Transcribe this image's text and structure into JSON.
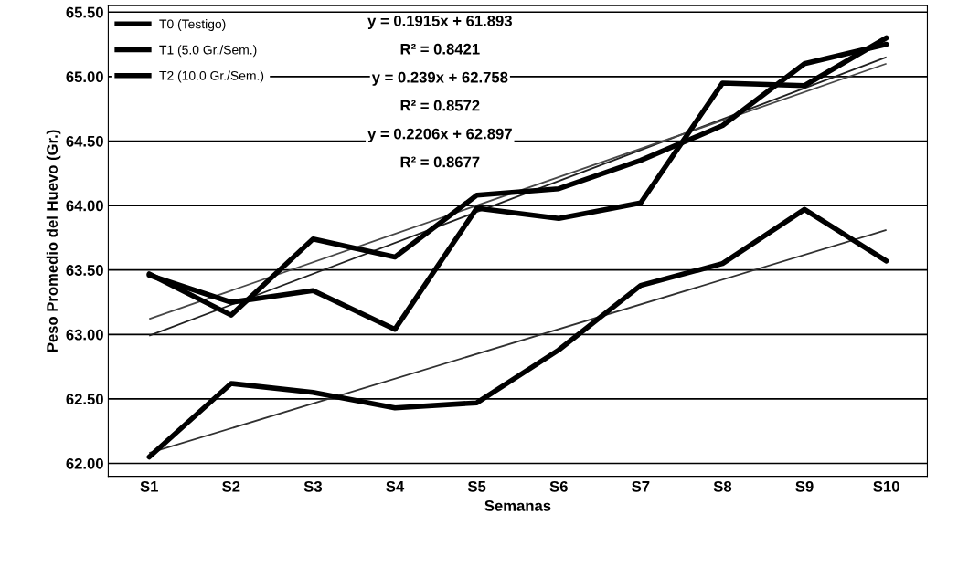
{
  "chart_data": {
    "type": "line",
    "xlabel": "Semanas",
    "ylabel": "Peso Promedio del Huevo (Gr.)",
    "categories": [
      "S1",
      "S2",
      "S3",
      "S4",
      "S5",
      "S6",
      "S7",
      "S8",
      "S9",
      "S10"
    ],
    "series": [
      {
        "name": "T0 (Testigo)",
        "color": "#000000",
        "values": [
          62.05,
          62.62,
          62.55,
          62.43,
          62.47,
          62.88,
          63.38,
          63.55,
          63.97,
          63.57
        ]
      },
      {
        "name": "T1 (5.0 Gr./Sem.)",
        "color": "#000000",
        "values": [
          63.46,
          63.25,
          63.34,
          63.04,
          63.98,
          63.9,
          64.02,
          64.95,
          64.93,
          65.3
        ]
      },
      {
        "name": "T2 (10.0 Gr./Sem.)",
        "color": "#000000",
        "values": [
          63.47,
          63.15,
          63.74,
          63.6,
          64.08,
          64.13,
          64.35,
          64.62,
          65.1,
          65.25
        ]
      },
      {
        "color": "#303030",
        "x": [
          "S1",
          "S10"
        ],
        "values": [
          62.08,
          63.81
        ]
      },
      {
        "color": "#202020",
        "x": [
          "S1",
          "S10"
        ],
        "values": [
          62.99,
          65.15
        ]
      },
      {
        "color": "#484848",
        "x": [
          "S1",
          "S10"
        ],
        "values": [
          63.12,
          65.1
        ]
      }
    ],
    "ylim": [
      61.9,
      65.55
    ],
    "yticks": [
      {
        "value": 62,
        "label": "62.00"
      },
      {
        "value": 62.5,
        "label": "62.50"
      },
      {
        "value": 63,
        "label": "63.00"
      },
      {
        "value": 63.5,
        "label": "63.50"
      },
      {
        "value": 64,
        "label": "64.00"
      },
      {
        "value": 64.5,
        "label": "64.50"
      },
      {
        "value": 65,
        "label": "65.00"
      },
      {
        "value": 65.5,
        "label": "65.50"
      }
    ],
    "annotations": [
      "y = 0.1915x + 61.893",
      "R² = 0.8421",
      "y = 0.239x + 62.758",
      "R² = 0.8572",
      "y = 0.2206x + 62.897",
      "R² = 0.8677"
    ],
    "grid": "y",
    "legend": "top left",
    "marker": "none",
    "line_style": "solid"
  }
}
